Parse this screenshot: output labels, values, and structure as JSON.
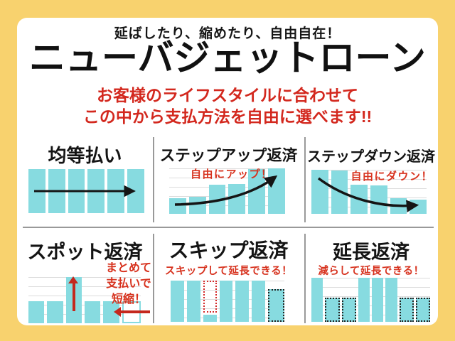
{
  "header": {
    "tagline": "延ばしたり、縮めたり、自由自在！",
    "title": "ニューバジェットローン",
    "subtitle_line1": "お客様のライフスタイルに合わせて",
    "subtitle_line2": "この中から支払方法を自由に選べます!!"
  },
  "colors": {
    "background_yellow": "#F8D26E",
    "card_white": "#FFFFFF",
    "bar_cyan": "#87DBE0",
    "text_red": "#D3281E",
    "arrow_red": "#C4281E",
    "text_black": "#151515",
    "dotted_dark": "#222222",
    "dotted_red": "#D22A2A",
    "divider_gray": "#999999",
    "gridline_gray": "#DCDCDC"
  },
  "panels": [
    {
      "title": "均等払い",
      "note": "",
      "bars": [
        {
          "h": 1,
          "style": "solid"
        },
        {
          "h": 1,
          "style": "solid"
        },
        {
          "h": 1,
          "style": "solid"
        },
        {
          "h": 1,
          "style": "solid"
        },
        {
          "h": 1,
          "style": "solid"
        },
        {
          "h": 1,
          "style": "solid"
        }
      ]
    },
    {
      "title": "ステップアップ返済",
      "note": "自由にアップ！",
      "bars": [
        {
          "h": 0.34,
          "style": "solid"
        },
        {
          "h": 0.37,
          "style": "solid"
        },
        {
          "h": 0.64,
          "style": "solid"
        },
        {
          "h": 0.66,
          "style": "solid"
        },
        {
          "h": 0.98,
          "style": "solid"
        },
        {
          "h": 1,
          "style": "solid"
        }
      ]
    },
    {
      "title": "ステップダウン返済",
      "note": "自由にダウン！",
      "bars": [
        {
          "h": 1,
          "style": "solid"
        },
        {
          "h": 0.98,
          "style": "solid"
        },
        {
          "h": 0.66,
          "style": "solid"
        },
        {
          "h": 0.64,
          "style": "solid"
        },
        {
          "h": 0.35,
          "style": "solid"
        },
        {
          "h": 0.33,
          "style": "solid"
        }
      ]
    },
    {
      "title": "スポット返済",
      "note_lines": [
        "まとめて",
        "支払いで",
        "短縮！"
      ],
      "bars": [
        {
          "h": 0.48,
          "style": "solid"
        },
        {
          "h": 0.48,
          "style": "solid"
        },
        {
          "h": 1,
          "style": "solid",
          "arrow": "up"
        },
        {
          "h": 0.48,
          "style": "solid"
        },
        {
          "h": 0.48,
          "style": "solid"
        },
        {
          "h": 0.48,
          "style": "ghost",
          "arrow": "left"
        }
      ]
    },
    {
      "title": "スキップ返済",
      "note": "スキップして延長できる！",
      "bars": [
        {
          "h": 1,
          "style": "solid"
        },
        {
          "h": 1,
          "style": "solid"
        },
        {
          "h": 1,
          "style": "skip",
          "outline": 0.78,
          "stub": 0.17
        },
        {
          "h": 1,
          "style": "solid"
        },
        {
          "h": 1,
          "style": "solid"
        },
        {
          "h": 1,
          "style": "solid"
        },
        {
          "h": 0.8,
          "style": "dotted"
        }
      ]
    },
    {
      "title": "延長返済",
      "note": "減らして延長できる！",
      "bars": [
        {
          "h": 1,
          "style": "solid"
        },
        {
          "h": 0.55,
          "style": "dotted"
        },
        {
          "h": 0.55,
          "style": "dotted"
        },
        {
          "h": 1,
          "style": "solid"
        },
        {
          "h": 1,
          "style": "solid"
        },
        {
          "h": 1,
          "style": "solid"
        },
        {
          "h": 0.55,
          "style": "dotted"
        },
        {
          "h": 0.55,
          "style": "dotted"
        }
      ]
    }
  ],
  "chart_data": [
    {
      "type": "bar",
      "title": "均等払い",
      "values": [
        1,
        1,
        1,
        1,
        1,
        1
      ],
      "note": "",
      "annotation": "horizontal right arrow"
    },
    {
      "type": "bar",
      "title": "ステップアップ返済",
      "values": [
        0.34,
        0.37,
        0.64,
        0.66,
        0.98,
        1
      ],
      "note": "自由にアップ！",
      "annotation": "rising curved arrow"
    },
    {
      "type": "bar",
      "title": "ステップダウン返済",
      "values": [
        1,
        0.98,
        0.66,
        0.64,
        0.35,
        0.33
      ],
      "note": "自由にダウン！",
      "annotation": "falling curved arrow"
    },
    {
      "type": "bar",
      "title": "スポット返済",
      "values": [
        0.48,
        0.48,
        1,
        0.48,
        0.48,
        0.48
      ],
      "note": "まとめて支払いで短縮！",
      "annotation": "red up arrow in tall bar, red left arrow into outlined final bar"
    },
    {
      "type": "bar",
      "title": "スキップ返済",
      "values": [
        1,
        1,
        0.17,
        1,
        1,
        1,
        0.8
      ],
      "note": "スキップして延長できる！",
      "annotation": "3rd bar skipped (red dotted outline), extra dotted bar appended"
    },
    {
      "type": "bar",
      "title": "延長返済",
      "values": [
        1,
        0.55,
        0.55,
        1,
        1,
        1,
        0.55,
        0.55
      ],
      "note": "減らして延長できる！",
      "annotation": "reduced bars shown with dark dotted outlines"
    }
  ]
}
